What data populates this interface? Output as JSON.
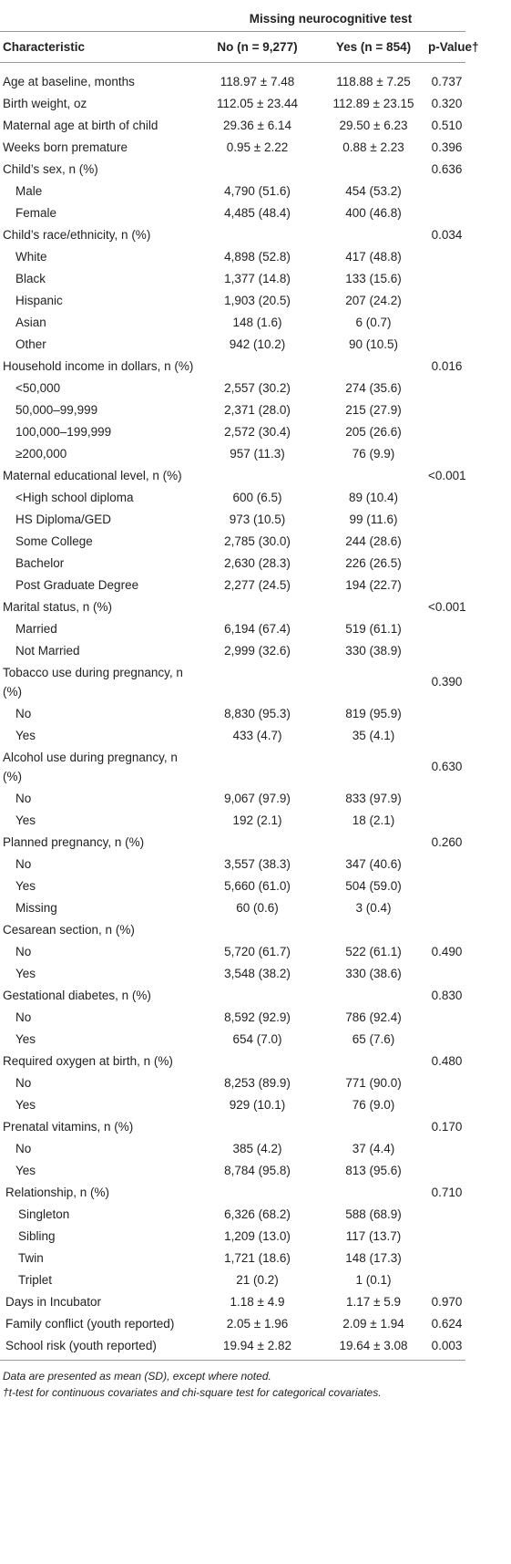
{
  "table": {
    "group_header": "Missing neurocognitive test",
    "columns": [
      "Characteristic",
      "No (n = 9,277)",
      "Yes (n = 854)",
      "p-Value†"
    ],
    "rows": [
      {
        "label": "Age at baseline, months",
        "no": "118.97 ± 7.48",
        "yes": "118.88 ± 7.25",
        "p": "0.737",
        "indent": 0
      },
      {
        "label": "Birth weight, oz",
        "no": "112.05 ± 23.44",
        "yes": "112.89 ± 23.15",
        "p": "0.320",
        "indent": 0
      },
      {
        "label": "Maternal age at birth of child",
        "no": "29.36 ± 6.14",
        "yes": "29.50 ± 6.23",
        "p": "0.510",
        "indent": 0
      },
      {
        "label": "Weeks born premature",
        "no": "0.95 ± 2.22",
        "yes": "0.88 ± 2.23",
        "p": "0.396",
        "indent": 0
      },
      {
        "label": "Child’s sex, n (%)",
        "p": "0.636",
        "indent": 0
      },
      {
        "label": "Male",
        "no": "4,790 (51.6)",
        "yes": "454 (53.2)",
        "indent": 1
      },
      {
        "label": "Female",
        "no": "4,485 (48.4)",
        "yes": "400 (46.8)",
        "indent": 1
      },
      {
        "label": "Child’s race/ethnicity, n (%)",
        "p": "0.034",
        "indent": 0
      },
      {
        "label": "White",
        "no": "4,898 (52.8)",
        "yes": "417 (48.8)",
        "indent": 1
      },
      {
        "label": "Black",
        "no": "1,377 (14.8)",
        "yes": "133 (15.6)",
        "indent": 1
      },
      {
        "label": "Hispanic",
        "no": "1,903 (20.5)",
        "yes": "207 (24.2)",
        "indent": 1
      },
      {
        "label": "Asian",
        "no": "148 (1.6)",
        "yes": "6 (0.7)",
        "indent": 1
      },
      {
        "label": "Other",
        "no": "942 (10.2)",
        "yes": "90 (10.5)",
        "indent": 1
      },
      {
        "label": "Household income in dollars, n (%)",
        "p": "0.016",
        "indent": 0
      },
      {
        "label": "<50,000",
        "no": "2,557 (30.2)",
        "yes": "274 (35.6)",
        "indent": 1
      },
      {
        "label": "50,000–99,999",
        "no": "2,371 (28.0)",
        "yes": "215 (27.9)",
        "indent": 1
      },
      {
        "label": "100,000–199,999",
        "no": "2,572 (30.4)",
        "yes": "205 (26.6)",
        "indent": 1
      },
      {
        "label": "≥200,000",
        "no": "957 (11.3)",
        "yes": "76 (9.9)",
        "indent": 1
      },
      {
        "label": "Maternal educational level, n (%)",
        "p": "<0.001",
        "indent": 0
      },
      {
        "label": "<High school diploma",
        "no": "600 (6.5)",
        "yes": "89 (10.4)",
        "indent": 1
      },
      {
        "label": "HS Diploma/GED",
        "no": "973 (10.5)",
        "yes": "99 (11.6)",
        "indent": 1
      },
      {
        "label": "Some College",
        "no": "2,785 (30.0)",
        "yes": "244 (28.6)",
        "indent": 1
      },
      {
        "label": "Bachelor",
        "no": "2,630 (28.3)",
        "yes": "226 (26.5)",
        "indent": 1
      },
      {
        "label": "Post Graduate Degree",
        "no": "2,277 (24.5)",
        "yes": "194 (22.7)",
        "indent": 1
      },
      {
        "label": "Marital status, n (%)",
        "p": "<0.001",
        "indent": 0
      },
      {
        "label": "Married",
        "no": "6,194 (67.4)",
        "yes": "519 (61.1)",
        "indent": 1
      },
      {
        "label": "Not Married",
        "no": "2,999 (32.6)",
        "yes": "330 (38.9)",
        "indent": 1
      },
      {
        "label": "Tobacco use during pregnancy, n (%)",
        "p": "0.390",
        "indent": 0
      },
      {
        "label": "No",
        "no": "8,830 (95.3)",
        "yes": "819 (95.9)",
        "indent": 1
      },
      {
        "label": "Yes",
        "no": "433 (4.7)",
        "yes": "35 (4.1)",
        "indent": 1
      },
      {
        "label": "Alcohol use during pregnancy, n (%)",
        "p": "0.630",
        "indent": 0
      },
      {
        "label": "No",
        "no": "9,067 (97.9)",
        "yes": "833 (97.9)",
        "indent": 1
      },
      {
        "label": "Yes",
        "no": "192 (2.1)",
        "yes": "18 (2.1)",
        "indent": 1
      },
      {
        "label": "Planned pregnancy, n (%)",
        "p": "0.260",
        "indent": 0
      },
      {
        "label": "No",
        "no": "3,557 (38.3)",
        "yes": "347 (40.6)",
        "indent": 1
      },
      {
        "label": "Yes",
        "no": "5,660 (61.0)",
        "yes": "504 (59.0)",
        "indent": 1
      },
      {
        "label": "Missing",
        "no": "60 (0.6)",
        "yes": "3 (0.4)",
        "indent": 1
      },
      {
        "label": "Cesarean section, n (%)",
        "indent": 0
      },
      {
        "label": "No",
        "no": "5,720 (61.7)",
        "yes": "522 (61.1)",
        "p": "0.490",
        "indent": 1
      },
      {
        "label": "Yes",
        "no": "3,548 (38.2)",
        "yes": "330 (38.6)",
        "indent": 1
      },
      {
        "label": "Gestational diabetes, n (%)",
        "p": "0.830",
        "indent": 0
      },
      {
        "label": "No",
        "no": "8,592 (92.9)",
        "yes": "786 (92.4)",
        "indent": 1
      },
      {
        "label": "Yes",
        "no": "654 (7.0)",
        "yes": "65 (7.6)",
        "indent": 1
      },
      {
        "label": "Required oxygen at birth, n (%)",
        "p": "0.480",
        "indent": 0
      },
      {
        "label": "No",
        "no": "8,253 (89.9)",
        "yes": "771 (90.0)",
        "indent": 1
      },
      {
        "label": "Yes",
        "no": "929 (10.1)",
        "yes": "76 (9.0)",
        "indent": 1
      },
      {
        "label": "Prenatal vitamins, n (%)",
        "p": "0.170",
        "indent": 0
      },
      {
        "label": "No",
        "no": "385 (4.2)",
        "yes": "37 (4.4)",
        "indent": 1
      },
      {
        "label": "Yes",
        "no": "8,784 (95.8)",
        "yes": "813 (95.6)",
        "indent": 1
      },
      {
        "label": "Relationship, n (%)",
        "p": "0.710",
        "indent": 0.5
      },
      {
        "label": "Singleton",
        "no": "6,326 (68.2)",
        "yes": "588 (68.9)",
        "indent": 2
      },
      {
        "label": "Sibling",
        "no": "1,209 (13.0)",
        "yes": "117 (13.7)",
        "indent": 2
      },
      {
        "label": "Twin",
        "no": "1,721 (18.6)",
        "yes": "148 (17.3)",
        "indent": 2
      },
      {
        "label": "Triplet",
        "no": "21 (0.2)",
        "yes": "1 (0.1)",
        "indent": 2
      },
      {
        "label": "Days in Incubator",
        "no": "1.18 ± 4.9",
        "yes": "1.17 ± 5.9",
        "p": "0.970",
        "indent": 0.5
      },
      {
        "label": "Family conflict (youth reported)",
        "no": "2.05 ± 1.96",
        "yes": "2.09 ± 1.94",
        "p": "0.624",
        "indent": 0.5
      },
      {
        "label": "School risk (youth reported)",
        "no": "19.94 ± 2.82",
        "yes": "19.64 ± 3.08",
        "p": "0.003",
        "indent": 0.5
      }
    ]
  },
  "footnotes": [
    "Data are presented as mean (SD), except where noted.",
    "†t-test for continuous covariates and chi-square test for categorical covariates."
  ]
}
